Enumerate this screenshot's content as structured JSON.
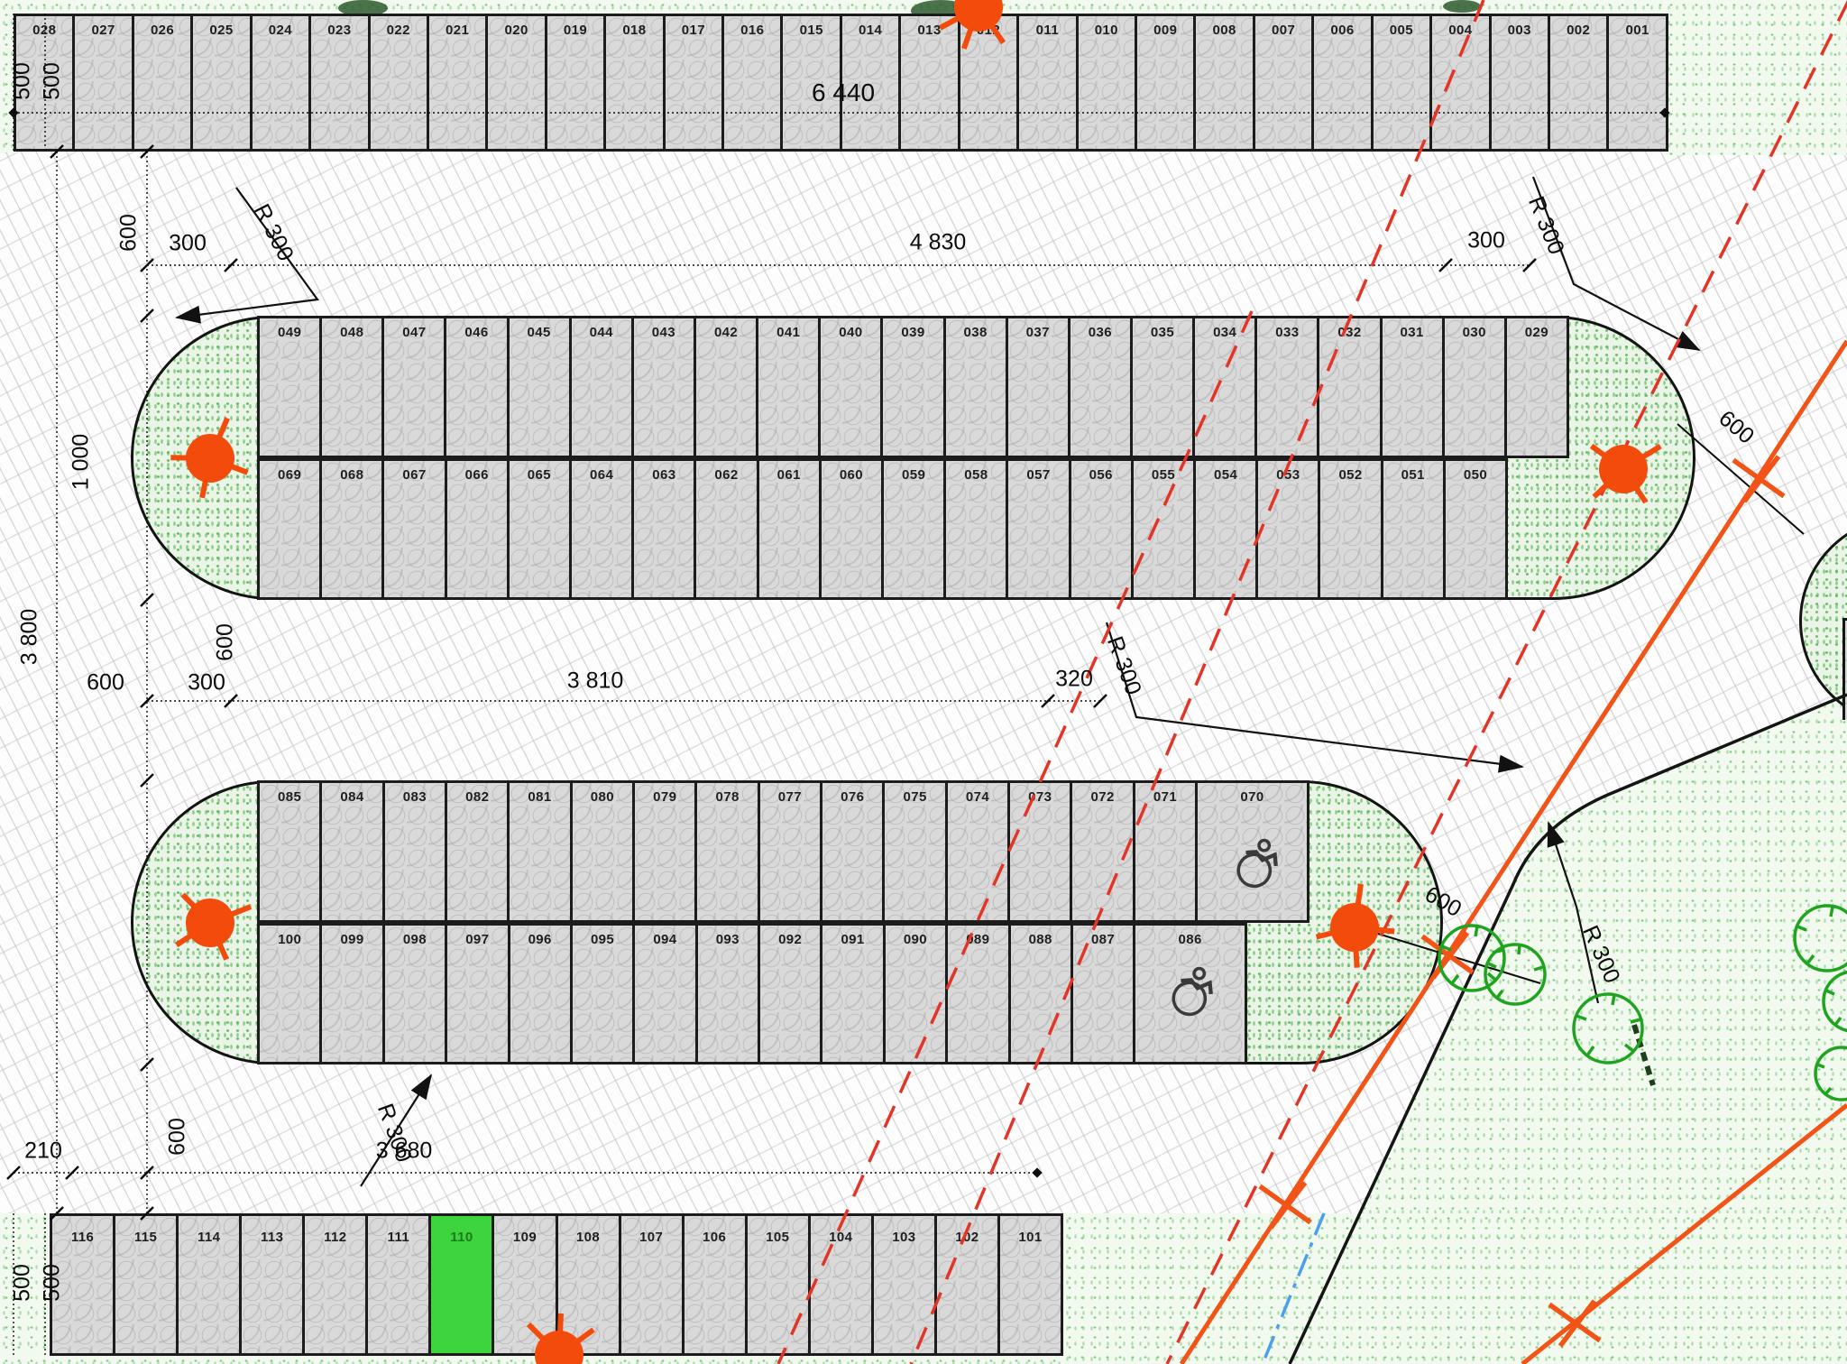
{
  "title": "parking-layout-plan",
  "stalls": {
    "row_top": [
      "028",
      "027",
      "026",
      "025",
      "024",
      "023",
      "022",
      "021",
      "020",
      "019",
      "018",
      "017",
      "016",
      "015",
      "014",
      "013",
      "012",
      "011",
      "010",
      "009",
      "008",
      "007",
      "006",
      "005",
      "004",
      "003",
      "002",
      "001"
    ],
    "island_b_top": [
      "049",
      "048",
      "047",
      "046",
      "045",
      "044",
      "043",
      "042",
      "041",
      "040",
      "039",
      "038",
      "037",
      "036",
      "035",
      "034",
      "033",
      "032",
      "031",
      "030",
      "029"
    ],
    "island_b_bottom": [
      "069",
      "068",
      "067",
      "066",
      "065",
      "064",
      "063",
      "062",
      "061",
      "060",
      "059",
      "058",
      "057",
      "056",
      "055",
      "054",
      "053",
      "052",
      "051",
      "050"
    ],
    "island_c_top": [
      "085",
      "084",
      "083",
      "082",
      "081",
      "080",
      "079",
      "078",
      "077",
      "076",
      "075",
      "074",
      "073",
      "072",
      "071",
      "070"
    ],
    "island_c_bottom": [
      "100",
      "099",
      "098",
      "097",
      "096",
      "095",
      "094",
      "093",
      "092",
      "091",
      "090",
      "089",
      "088",
      "087",
      "086"
    ],
    "row_bottom": [
      "116",
      "115",
      "114",
      "113",
      "112",
      "111",
      "110",
      "109",
      "108",
      "107",
      "106",
      "105",
      "104",
      "103",
      "102",
      "101"
    ],
    "wide_accessible": [
      "070",
      "086"
    ],
    "highlighted": "110"
  },
  "dims": {
    "row_top_width": "6 440",
    "stall_depth_a": "500",
    "stall_depth_b": "500",
    "aisle_top": "600",
    "offset_left_top": "300",
    "island_b_width": "4 830",
    "offset_right_top": "300",
    "island_depth": "1 000",
    "site_left": "3 800",
    "aisle_mid_v": "600",
    "offset_mid_left_a": "600",
    "offset_mid_left_b": "300",
    "island_c_width": "3 810",
    "offset_mid_right": "320",
    "aisle_bottom_v": "600",
    "offset_bottom": "210",
    "row_bottom_width": "3 680",
    "stall_depth_c": "500",
    "stall_depth_d": "500",
    "clearance_b": "600",
    "clearance_c": "600",
    "radius": "R 300"
  },
  "colors": {
    "highlight_green": "#3ed43e",
    "orange_utility": "#f25316",
    "red_dashed": "#e33428",
    "blue_line": "#4aa0ee",
    "tree_green": "#1ea41e",
    "paver_grey": "#d9d9d9"
  }
}
